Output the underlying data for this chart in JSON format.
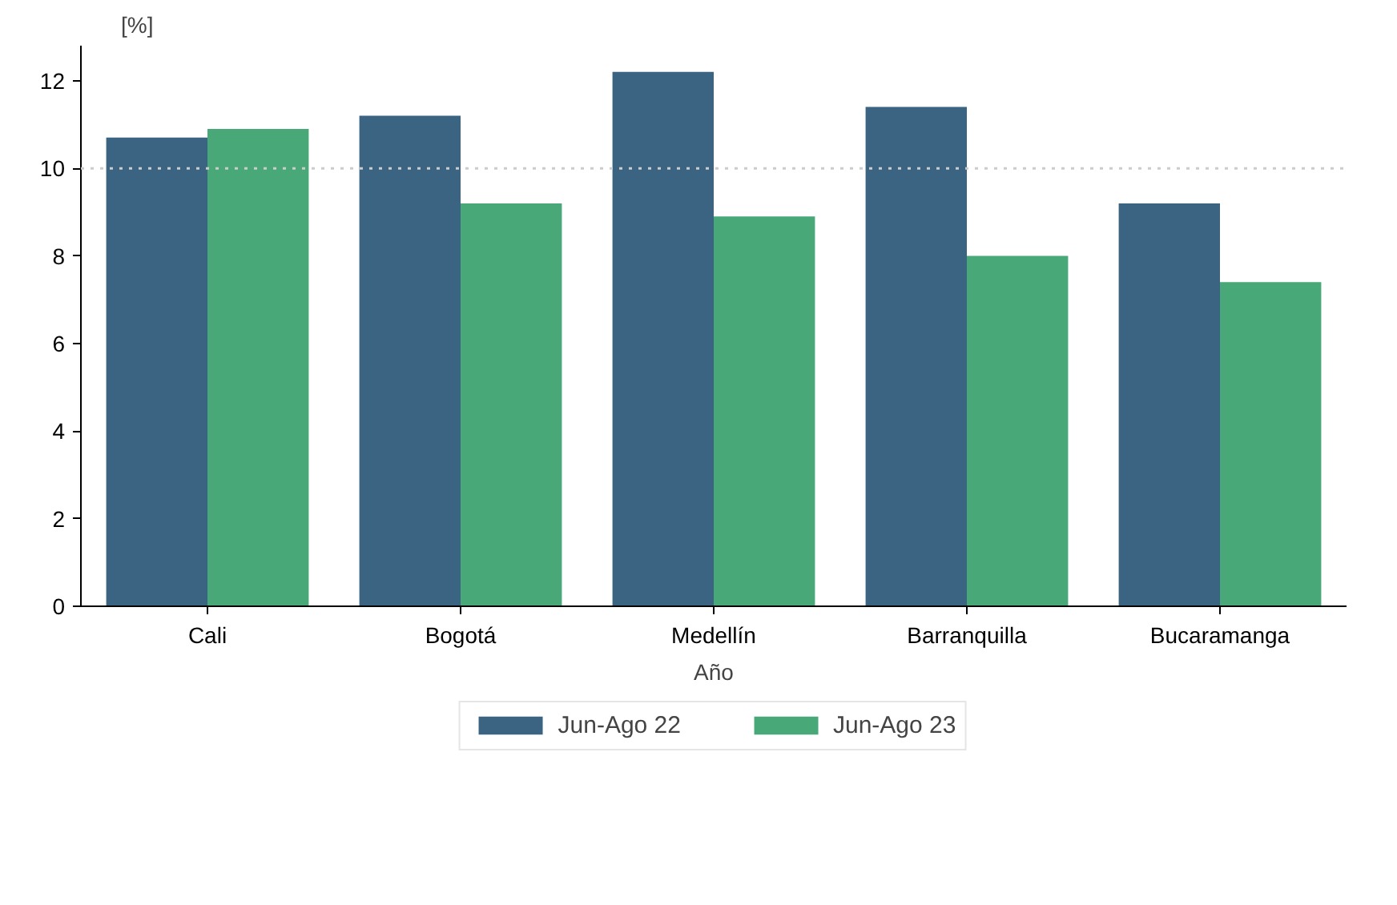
{
  "chart_data": {
    "type": "bar",
    "xlabel": "Año",
    "ylabel": "[%]",
    "categories": [
      "Cali",
      "Bogotá",
      "Medellín",
      "Barranquilla",
      "Bucaramanga"
    ],
    "series": [
      {
        "name": "Jun-Ago 22",
        "color": "#3b6482",
        "values": [
          10.7,
          11.2,
          12.2,
          11.4,
          9.2
        ]
      },
      {
        "name": "Jun-Ago 23",
        "color": "#48a878",
        "values": [
          10.9,
          9.2,
          8.9,
          8.0,
          7.4
        ]
      }
    ],
    "ylim": [
      0,
      12.8
    ],
    "yticks": [
      0,
      2,
      4,
      6,
      8,
      10,
      12
    ],
    "ref_lines": [
      {
        "axis": "y",
        "value": 10,
        "color": "#cccccc",
        "line_style": "dotted"
      }
    ],
    "grid": false,
    "legend": "bottom"
  }
}
